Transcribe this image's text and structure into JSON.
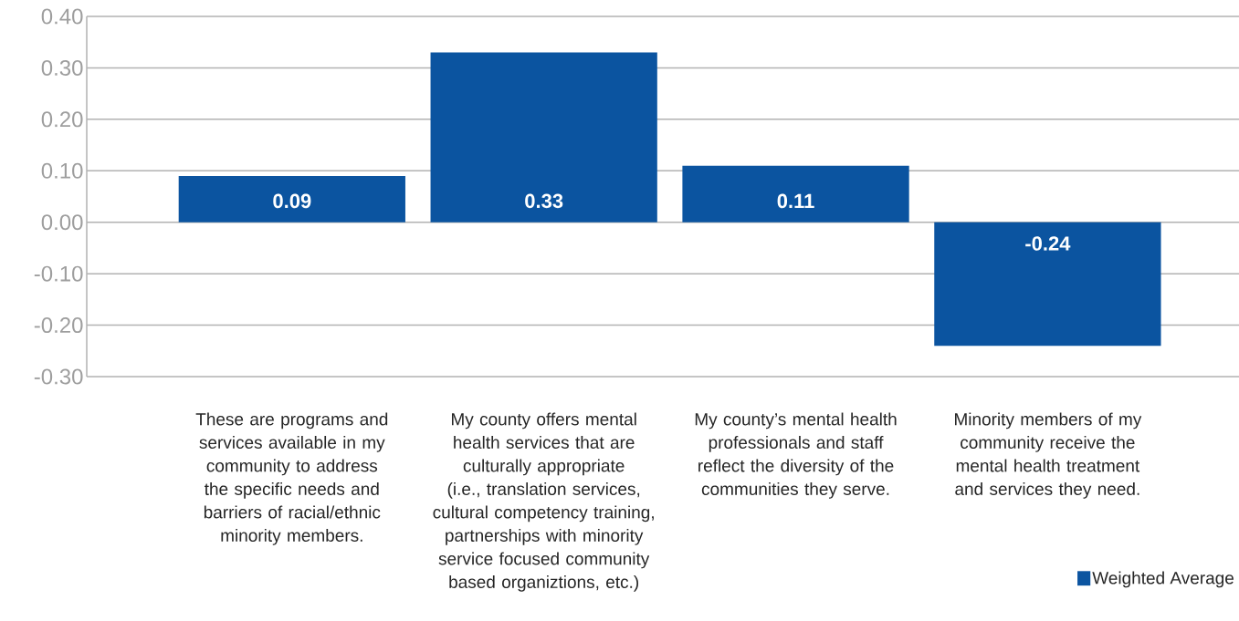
{
  "chart_data": {
    "type": "bar",
    "categories": [
      "These are programs and services available in my community to address the specific needs and barriers of racial/ethnic minority members.",
      "My county offers mental health services that are culturally appropriate (i.e., translation services, cultural competency training, partnerships with minority service focused community based organiztions, etc.)",
      "My county’s mental health professionals and staff reflect the diversity of the communities they serve.",
      "Minority members of my community receive the mental health treatment and services they need."
    ],
    "series": [
      {
        "name": "Weighted Average",
        "color": "#0b54a0",
        "values": [
          0.09,
          0.33,
          0.11,
          -0.24
        ]
      }
    ],
    "ylim": [
      -0.3,
      0.4
    ],
    "yticks": [
      {
        "value": -0.3,
        "label": "-0.30"
      },
      {
        "value": -0.2,
        "label": "-0.20"
      },
      {
        "value": -0.1,
        "label": "-0.10"
      },
      {
        "value": 0,
        "label": "0.00"
      },
      {
        "value": 0.1,
        "label": "0.10"
      },
      {
        "value": 0.2,
        "label": "0.20"
      },
      {
        "value": 0.3,
        "label": "0.30"
      },
      {
        "value": 0.4,
        "label": "0.40"
      }
    ],
    "grid": "y",
    "legend": "bottom right",
    "data_labels": true
  }
}
